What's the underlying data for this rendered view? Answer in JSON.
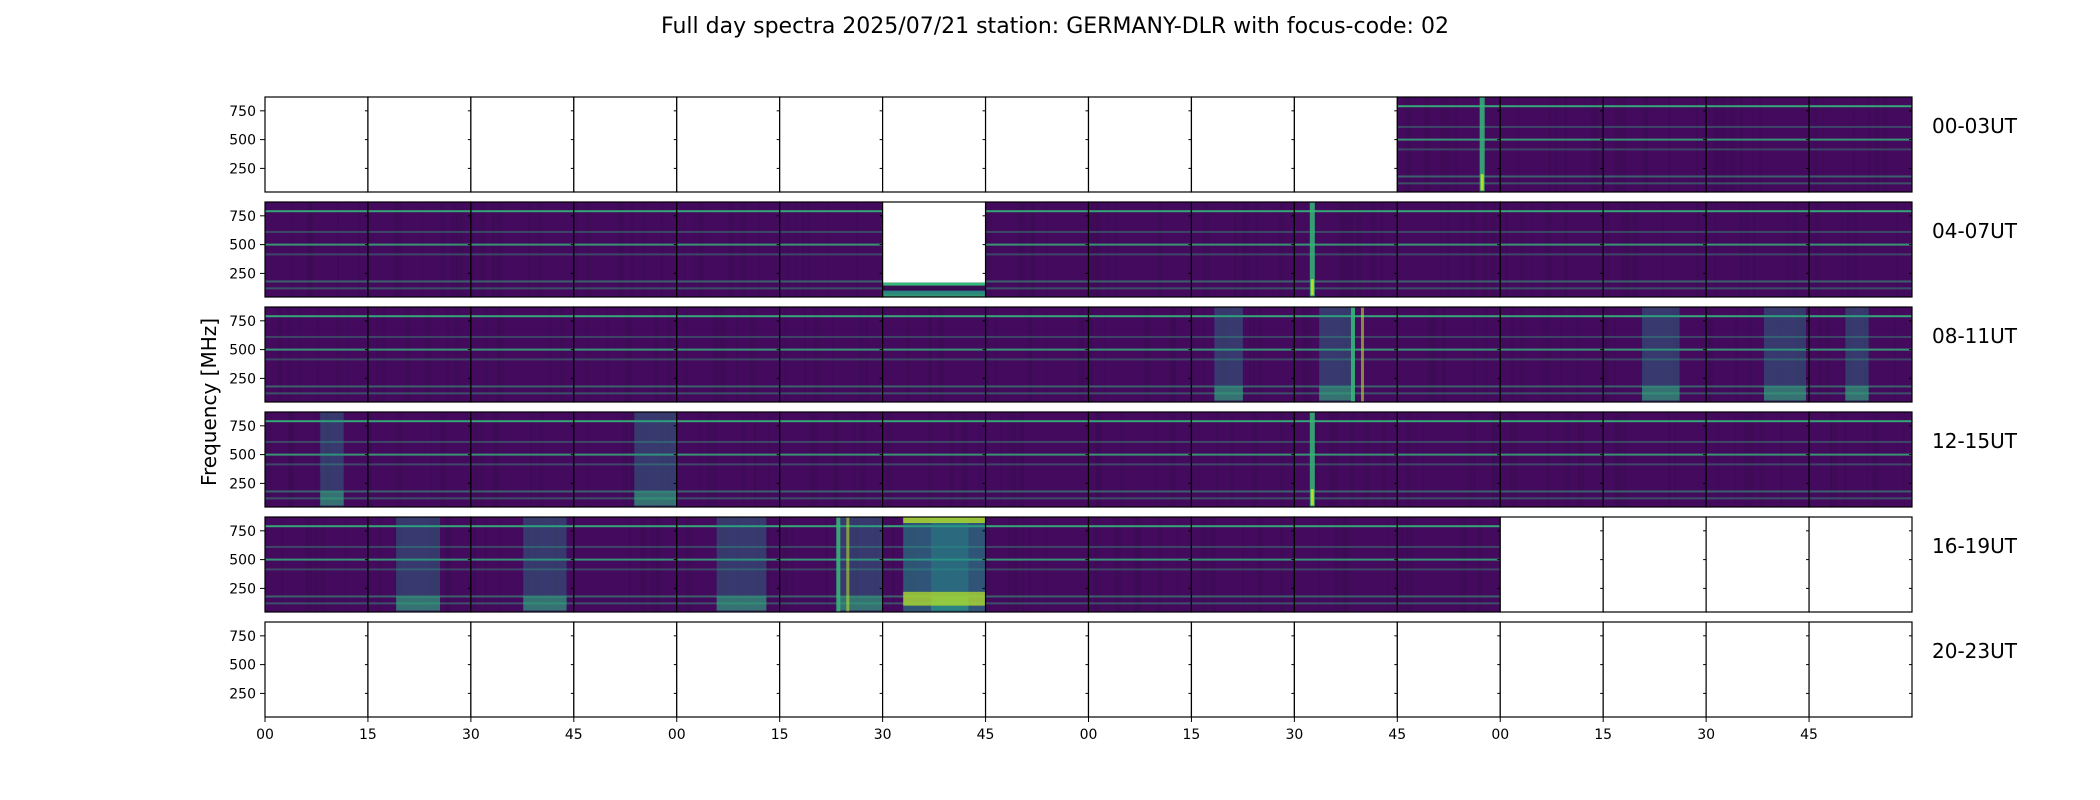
{
  "chart_data": {
    "type": "heatmap",
    "title": "Full day spectra 2025/07/21 station: GERMANY-DLR with focus-code: 02",
    "ylabel": "Frequency [MHz]",
    "xlabel": "",
    "ytick_labels": [
      "750",
      "500",
      "250"
    ],
    "yticks": [
      750,
      500,
      250
    ],
    "ylim": [
      45,
      870
    ],
    "xtick_labels": [
      "00",
      "15",
      "30",
      "45",
      "00",
      "15",
      "30",
      "45",
      "00",
      "15",
      "30",
      "45",
      "00",
      "15",
      "30",
      "45"
    ],
    "x_unit": "minutes within hour",
    "rows": [
      {
        "label": "00-03UT",
        "segments": [
          "none",
          "none",
          "none",
          "none",
          "none",
          "none",
          "none",
          "none",
          "none",
          "none",
          "none",
          "quiet-burst",
          "quiet",
          "quiet",
          "quiet",
          "quiet"
        ]
      },
      {
        "label": "04-07UT",
        "segments": [
          "quiet",
          "quiet",
          "quiet",
          "quiet",
          "quiet",
          "quiet",
          "partial",
          "quiet",
          "quiet",
          "quiet",
          "burst",
          "quiet",
          "quiet",
          "quiet",
          "quiet",
          "quiet"
        ]
      },
      {
        "label": "08-11UT",
        "segments": [
          "quiet",
          "quiet",
          "quiet",
          "quiet",
          "quiet",
          "quiet",
          "quiet",
          "quiet",
          "quiet",
          "active",
          "strong",
          "quiet",
          "quiet",
          "active",
          "active",
          "active"
        ]
      },
      {
        "label": "12-15UT",
        "segments": [
          "active",
          "quiet",
          "quiet",
          "active",
          "quiet",
          "quiet",
          "quiet",
          "quiet",
          "quiet",
          "quiet",
          "burst",
          "quiet",
          "quiet",
          "quiet",
          "quiet",
          "quiet"
        ]
      },
      {
        "label": "16-19UT",
        "segments": [
          "quiet",
          "active",
          "active",
          "quiet",
          "active",
          "strong",
          "very-strong",
          "quiet",
          "quiet",
          "quiet",
          "quiet",
          "quiet",
          "none",
          "none",
          "none",
          "none"
        ]
      },
      {
        "label": "20-23UT",
        "segments": [
          "none",
          "none",
          "none",
          "none",
          "none",
          "none",
          "none",
          "none",
          "none",
          "none",
          "none",
          "none",
          "none",
          "none",
          "none",
          "none"
        ]
      }
    ],
    "colormap": "viridis",
    "colors": {
      "background": "#440a5e",
      "dark": "#3a0c52",
      "band": "#35b779",
      "band_mid": "#21918c",
      "bright": "#b5de2b",
      "empty": "#ffffff"
    }
  }
}
